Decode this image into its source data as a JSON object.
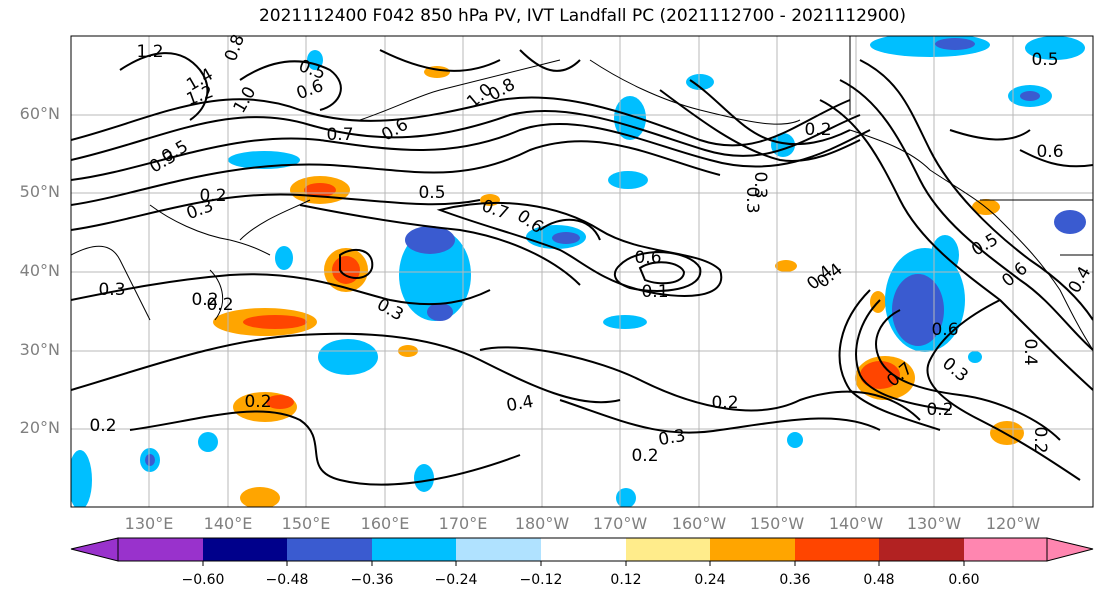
{
  "title": "2021112400 F042 850 hPa PV, IVT Landfall PC (2021112700 - 2021112900)",
  "lat_labels": [
    "60°N",
    "50°N",
    "40°N",
    "30°N",
    "20°N"
  ],
  "lon_labels": [
    "130°E",
    "140°E",
    "150°E",
    "160°E",
    "170°E",
    "180°W",
    "170°W",
    "160°W",
    "150°W",
    "140°W",
    "130°W",
    "120°W"
  ],
  "colorbar": {
    "colors": [
      "#9932cc",
      "#00008b",
      "#3a5bd0",
      "#00bfff",
      "#b0e2ff",
      "#ffffff",
      "#ffec8b",
      "#ffa500",
      "#ff4500",
      "#b22222",
      "#ff86b0"
    ],
    "ticks": [
      "−0.60",
      "−0.48",
      "−0.36",
      "−0.24",
      "−0.12",
      "0.12",
      "0.24",
      "0.36",
      "0.48",
      "0.60"
    ],
    "extend": "both"
  },
  "contour_labels": [
    "1.2",
    "0.8",
    "1.4",
    "1.2",
    "1.0",
    "0.6",
    "0.5",
    "1.0",
    "0.8",
    "0.7",
    "0.6",
    "0.5",
    "0.3",
    "0.2",
    "0.5",
    "0.7",
    "0.6",
    "0.3",
    "0.4",
    "0.6",
    "0.1",
    "0.3",
    "0.4",
    "0.2",
    "0.2",
    "0.2",
    "0.3",
    "0.2",
    "0.4",
    "0.2",
    "0.3",
    "0.2",
    "0.3",
    "0.2",
    "0.6",
    "0.4",
    "0.5",
    "0.6",
    "0.5",
    "0.7",
    "0.3",
    "0.2",
    "0.4",
    "0.6",
    "0.2",
    "0.3"
  ]
}
